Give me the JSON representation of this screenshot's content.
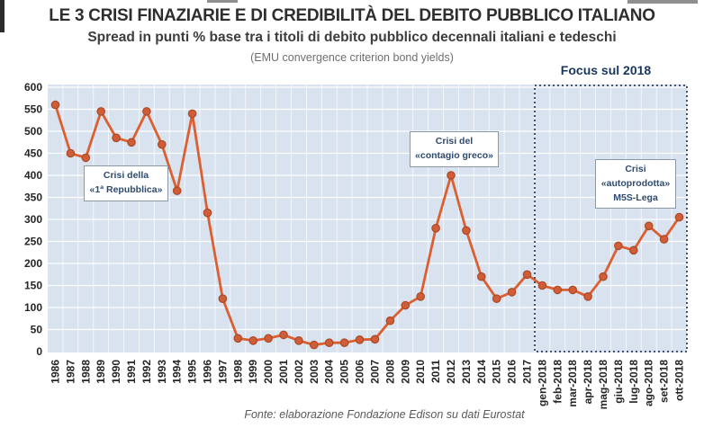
{
  "header": {
    "title": "LE 3 CRISI FINAZIARIE E DI CREDIBILITÀ DEL DEBITO PUBBLICO ITALIANO",
    "subtitle": "Spread in punti % base tra i titoli di debito pubblico decennali italiani e tedeschi",
    "note": "(EMU convergence criterion bond yields)"
  },
  "footer": "Fonte: elaborazione Fondazione Edison su dati Eurostat",
  "colors": {
    "series_line": "#db5f31",
    "marker_fill": "#d15c38",
    "marker_border": "#a84a26",
    "plot_background": "#d9e3ef",
    "gridline": "#ffffff",
    "focus_box_border": "#31415a",
    "annotation_text": "#2e4a6e",
    "annotation_border": "#8a99aa",
    "axis_label": "#252525",
    "focus_label": "#17365d"
  },
  "chart_data": {
    "type": "line",
    "title": "LE 3 CRISI FINAZIARIE E DI CREDIBILITÀ DEL DEBITO PUBBLICO ITALIANO",
    "subtitle": "Spread in punti % base tra i titoli di debito pubblico decennali italiani e tedeschi",
    "ylabel": "",
    "xlabel": "",
    "ylim": [
      0,
      600
    ],
    "ytick_step": 50,
    "grid": true,
    "x_labels_rotated": true,
    "legend": "none",
    "categories": [
      "1986",
      "1987",
      "1988",
      "1989",
      "1990",
      "1991",
      "1992",
      "1993",
      "1994",
      "1995",
      "1996",
      "1997",
      "1998",
      "1999",
      "2000",
      "2001",
      "2002",
      "2003",
      "2004",
      "2005",
      "2006",
      "2007",
      "2008",
      "2009",
      "2010",
      "2011",
      "2012",
      "2013",
      "2014",
      "2015",
      "2016",
      "2017",
      "gen-2018",
      "feb-2018",
      "mar-2018",
      "apr-2018",
      "mag-2018",
      "giu-2018",
      "lug-2018",
      "ago-2018",
      "set-2018",
      "ott-2018"
    ],
    "values": [
      560,
      450,
      440,
      545,
      485,
      475,
      545,
      470,
      365,
      540,
      315,
      120,
      30,
      25,
      30,
      38,
      25,
      15,
      20,
      20,
      27,
      28,
      70,
      105,
      125,
      280,
      400,
      275,
      170,
      120,
      135,
      175,
      150,
      140,
      140,
      125,
      170,
      240,
      230,
      285,
      255,
      305
    ],
    "annotations": [
      {
        "name": "crisi-prima-repubblica",
        "lines": [
          "Crisi della",
          "«1ª Repubblica»"
        ]
      },
      {
        "name": "crisi-contagio-greco",
        "lines": [
          "Crisi del",
          "«contagio greco»"
        ]
      },
      {
        "name": "crisi-autoprodotta",
        "lines": [
          "Crisi",
          "«autoprodotta»",
          "M5S-Lega"
        ]
      }
    ],
    "focus_box": {
      "label": "Focus sul 2018",
      "from": "gen-2018",
      "to": "ott-2018"
    }
  }
}
